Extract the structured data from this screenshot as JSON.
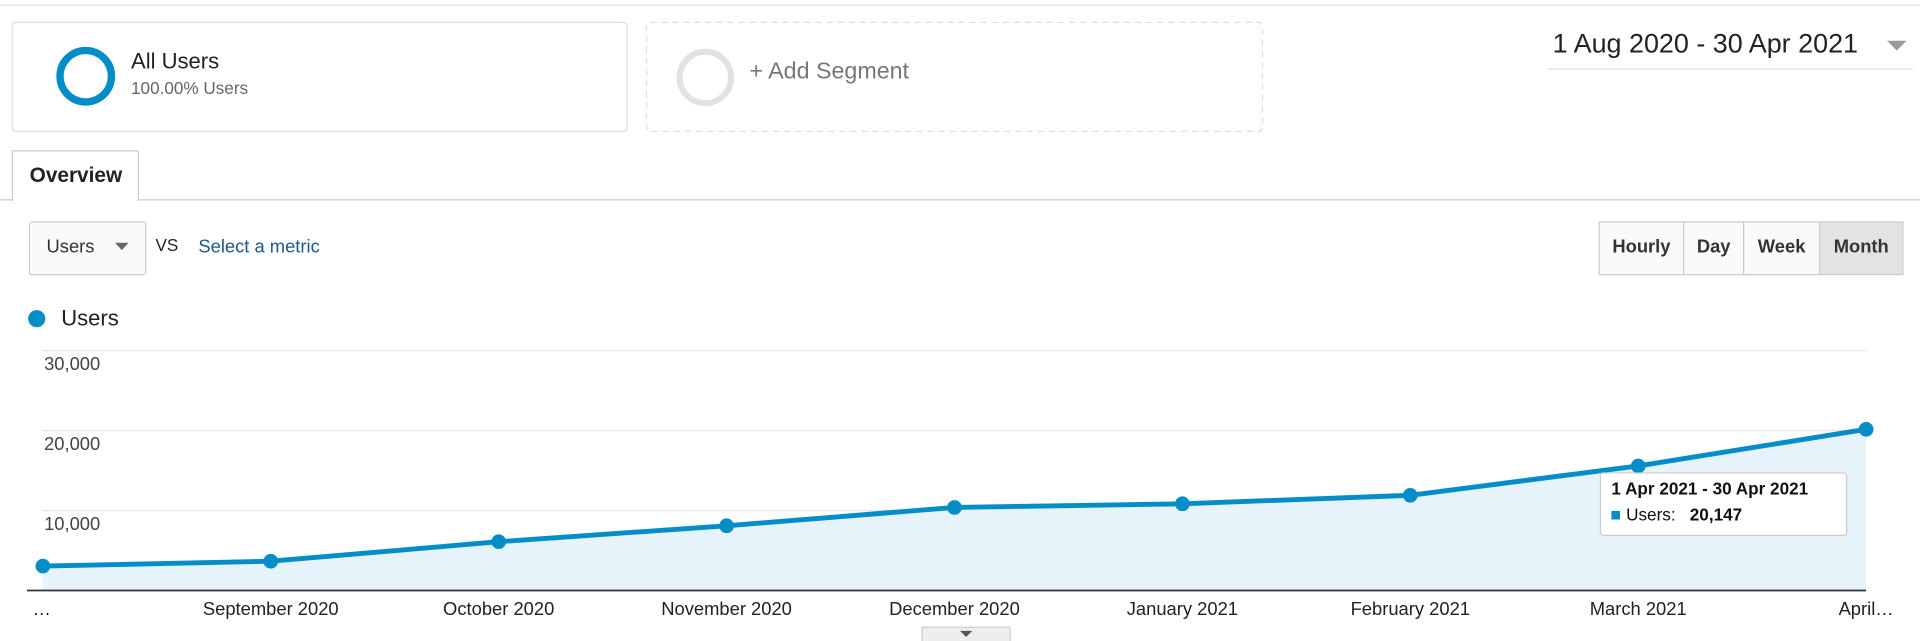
{
  "segments": {
    "primary": {
      "name": "All Users",
      "detail": "100.00% Users"
    },
    "add": "+ Add Segment"
  },
  "date_range": "1 Aug 2020 - 30 Apr 2021",
  "tab": "Overview",
  "metric_select": {
    "metric": "Users",
    "vs": "VS",
    "other": "Select a metric"
  },
  "granularity": [
    "Hourly",
    "Day",
    "Week",
    "Month"
  ],
  "chart_data": {
    "type": "line",
    "categories": [
      "…",
      "September 2020",
      "October 2020",
      "November 2020",
      "December 2020",
      "January 2021",
      "February 2021",
      "March 2021",
      "April…"
    ],
    "series": [
      {
        "name": "Users",
        "color": "#058dc7",
        "values": [
          3050,
          3660,
          6100,
          8090,
          10380,
          10840,
          11900,
          15570,
          20147
        ],
        "value_labels": [
          null,
          null,
          null,
          null,
          null,
          null,
          null,
          null,
          "20,147"
        ]
      }
    ],
    "ylim": [
      0,
      30000
    ],
    "yticks": [
      {
        "value": 10000,
        "label": "10,000"
      },
      {
        "value": 20000,
        "label": "20,000"
      },
      {
        "value": 30000,
        "label": "30,000"
      }
    ],
    "grid": true,
    "area": true,
    "tooltip": {
      "title": "1 Apr 2021 - 30 Apr 2021",
      "label": "Users:"
    }
  }
}
